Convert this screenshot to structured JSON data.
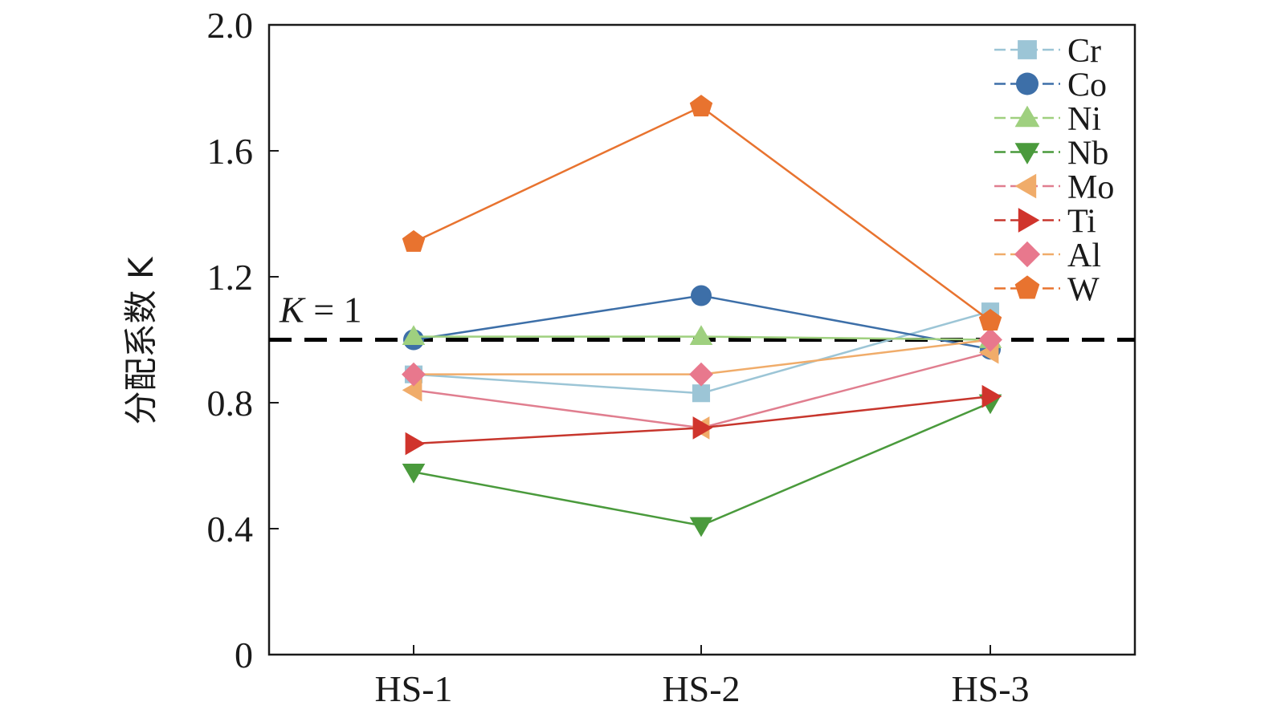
{
  "chart_data": {
    "type": "line",
    "title": "",
    "xlabel": "",
    "ylabel": "分配系数 K",
    "categories": [
      "HS-1",
      "HS-2",
      "HS-3"
    ],
    "ylim": [
      0,
      2.0
    ],
    "yticks": [
      0,
      0.4,
      0.8,
      1.2,
      1.6,
      2.0
    ],
    "ytick_labels": [
      "0",
      "0.4",
      "0.8",
      "1.2",
      "1.6",
      "2.0"
    ],
    "reference_line": {
      "value": 1.0,
      "label": "K = 1",
      "label_italic": "K",
      "label_rest": " = 1",
      "style": "dashed",
      "color": "#000000"
    },
    "legend_position": "top-right",
    "series": [
      {
        "name": "Cr",
        "marker": "square",
        "color": "#9cc5d6",
        "values": [
          0.89,
          0.83,
          1.09
        ]
      },
      {
        "name": "Co",
        "marker": "circle",
        "color": "#3d6fa8",
        "values": [
          1.0,
          1.14,
          0.97
        ]
      },
      {
        "name": "Ni",
        "marker": "triangle-up",
        "color": "#9fd07f",
        "values": [
          1.01,
          1.01,
          1.0
        ]
      },
      {
        "name": "Nb",
        "marker": "triangle-down",
        "color": "#4a9a3c",
        "values": [
          0.58,
          0.41,
          0.8
        ]
      },
      {
        "name": "Mo",
        "marker": "triangle-left",
        "color": "#f0ac6a",
        "values": [
          0.84,
          0.72,
          0.96
        ]
      },
      {
        "name": "Ti",
        "marker": "triangle-right",
        "color": "#d0342c",
        "values": [
          0.67,
          0.72,
          0.82
        ]
      },
      {
        "name": "Al",
        "marker": "diamond",
        "color": "#e8788d",
        "values": [
          0.89,
          0.89,
          1.0
        ]
      },
      {
        "name": "W",
        "marker": "pentagon",
        "color": "#e8732f",
        "values": [
          1.31,
          1.74,
          1.06
        ]
      }
    ],
    "line_colors": {
      "Cr": "#9cc5d6",
      "Co": "#3d6fa8",
      "Ni": "#9fd07f",
      "Nb": "#4a9a3c",
      "Mo": "#e07e8f",
      "Ti": "#c7362d",
      "Al": "#f0ac6a",
      "W": "#e8732f"
    }
  }
}
